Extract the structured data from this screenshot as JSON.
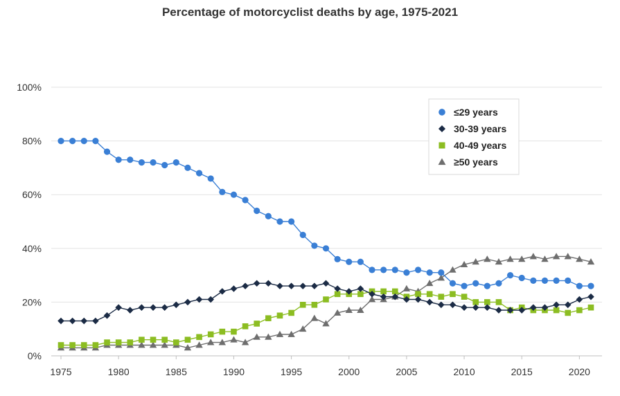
{
  "chart_data": {
    "type": "line",
    "title": "Percentage of motorcyclist deaths by age, 1975-2021",
    "xlabel": "",
    "ylabel": "",
    "xlim": [
      1975,
      2021
    ],
    "ylim": [
      0,
      100
    ],
    "x_ticks": [
      1975,
      1980,
      1985,
      1990,
      1995,
      2000,
      2005,
      2010,
      2015,
      2020
    ],
    "y_ticks": [
      0,
      20,
      40,
      60,
      80,
      100
    ],
    "y_tick_labels": [
      "0%",
      "20%",
      "40%",
      "60%",
      "80%",
      "100%"
    ],
    "grid": "horizontal",
    "legend_position": "top-right",
    "x": [
      1975,
      1976,
      1977,
      1978,
      1979,
      1980,
      1981,
      1982,
      1983,
      1984,
      1985,
      1986,
      1987,
      1988,
      1989,
      1990,
      1991,
      1992,
      1993,
      1994,
      1995,
      1996,
      1997,
      1998,
      1999,
      2000,
      2001,
      2002,
      2003,
      2004,
      2005,
      2006,
      2007,
      2008,
      2009,
      2010,
      2011,
      2012,
      2013,
      2014,
      2015,
      2016,
      2017,
      2018,
      2019,
      2020,
      2021
    ],
    "series": [
      {
        "name": "≤29 years",
        "color": "#3a7fd5",
        "marker": "circle",
        "values": [
          80,
          80,
          80,
          80,
          76,
          73,
          73,
          72,
          72,
          71,
          72,
          70,
          68,
          66,
          61,
          60,
          58,
          54,
          52,
          50,
          50,
          45,
          41,
          40,
          36,
          35,
          35,
          32,
          32,
          32,
          31,
          32,
          31,
          31,
          27,
          26,
          27,
          26,
          27,
          30,
          29,
          28,
          28,
          28,
          28,
          26,
          26
        ]
      },
      {
        "name": "30-39 years",
        "color": "#1b2b45",
        "marker": "diamond",
        "values": [
          13,
          13,
          13,
          13,
          15,
          18,
          17,
          18,
          18,
          18,
          19,
          20,
          21,
          21,
          24,
          25,
          26,
          27,
          27,
          26,
          26,
          26,
          26,
          27,
          25,
          24,
          25,
          23,
          22,
          22,
          21,
          21,
          20,
          19,
          19,
          18,
          18,
          18,
          17,
          17,
          17,
          18,
          18,
          19,
          19,
          21,
          22
        ]
      },
      {
        "name": "40-49 years",
        "color": "#8cbd22",
        "marker": "square",
        "values": [
          4,
          4,
          4,
          4,
          5,
          5,
          5,
          6,
          6,
          6,
          5,
          6,
          7,
          8,
          9,
          9,
          11,
          12,
          14,
          15,
          16,
          19,
          19,
          21,
          23,
          23,
          23,
          24,
          24,
          24,
          22,
          23,
          23,
          22,
          23,
          22,
          20,
          20,
          20,
          17,
          18,
          17,
          17,
          17,
          16,
          17,
          18
        ]
      },
      {
        "name": "≥50 years",
        "color": "#6e6e6e",
        "marker": "triangle",
        "values": [
          3,
          3,
          3,
          3,
          4,
          4,
          4,
          4,
          4,
          4,
          4,
          3,
          4,
          5,
          5,
          6,
          5,
          7,
          7,
          8,
          8,
          10,
          14,
          12,
          16,
          17,
          17,
          21,
          21,
          22,
          25,
          24,
          27,
          29,
          32,
          34,
          35,
          36,
          35,
          36,
          36,
          37,
          36,
          37,
          37,
          36,
          35
        ]
      }
    ]
  }
}
